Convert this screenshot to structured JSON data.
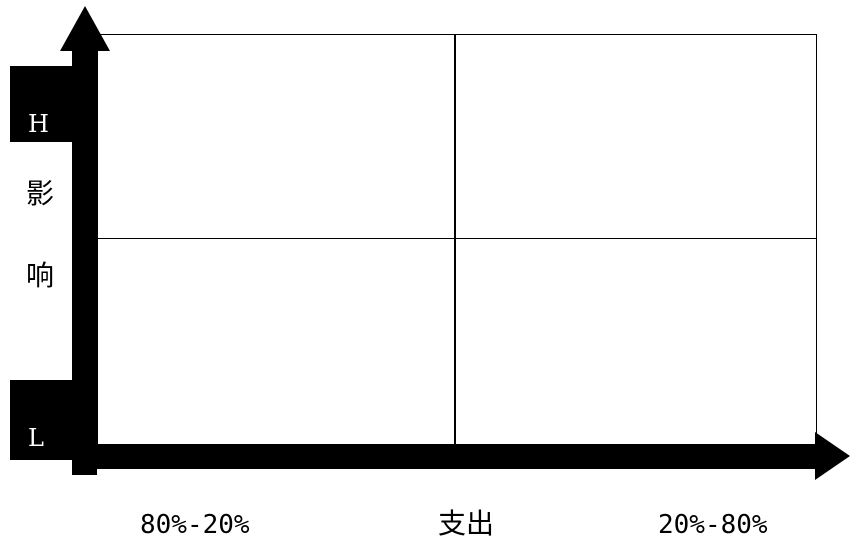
{
  "y_axis": {
    "high_label": "H",
    "low_label": "L",
    "title_chars": [
      "影",
      "响"
    ]
  },
  "x_axis": {
    "left_label": "80%-20%",
    "title": "支出",
    "right_label": "20%-80%"
  },
  "quadrants": {
    "top_left": "",
    "top_right": "",
    "bottom_left": "",
    "bottom_right": ""
  }
}
